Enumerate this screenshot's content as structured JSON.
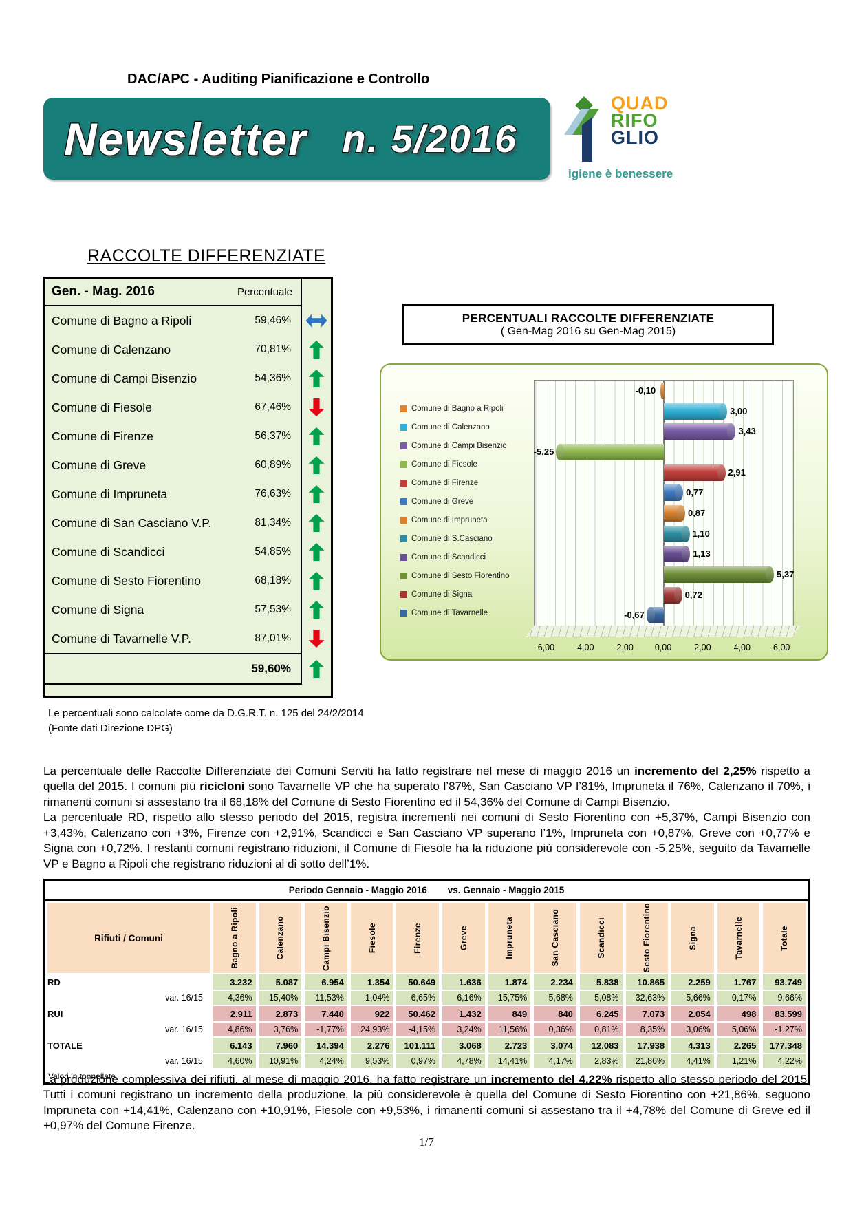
{
  "header": {
    "dept_title": "DAC/APC - Auditing Pianificazione e Controllo",
    "newsletter_label": "Newsletter",
    "issue_label": "n. 5/2016",
    "banner_color": "#177e79",
    "logo": {
      "line1": "QUAD",
      "line2": "RIFO",
      "line3": "GLIO",
      "colors": {
        "line1": "#f6a01a",
        "line2": "#4ca22f",
        "line3": "#1b3a63"
      },
      "tagline": "igiene è benessere"
    }
  },
  "rd_section": {
    "title": "RACCOLTE DIFFERENZIATE",
    "period_label": "Gen. - Mag.  2016",
    "col_label": "Percentuale",
    "rows": [
      {
        "name": "Comune di Bagno a Ripoli",
        "pct": "59,46%",
        "trend": "same"
      },
      {
        "name": "Comune di Calenzano",
        "pct": "70,81%",
        "trend": "up"
      },
      {
        "name": "Comune di Campi Bisenzio",
        "pct": "54,36%",
        "trend": "up"
      },
      {
        "name": "Comune di Fiesole",
        "pct": "67,46%",
        "trend": "down"
      },
      {
        "name": "Comune di Firenze",
        "pct": "56,37%",
        "trend": "up"
      },
      {
        "name": "Comune di Greve",
        "pct": "60,89%",
        "trend": "up"
      },
      {
        "name": "Comune di Impruneta",
        "pct": "76,63%",
        "trend": "up"
      },
      {
        "name": "Comune di San Casciano V.P.",
        "pct": "81,34%",
        "trend": "up"
      },
      {
        "name": "Comune di Scandicci",
        "pct": "54,85%",
        "trend": "up"
      },
      {
        "name": "Comune di Sesto Fiorentino",
        "pct": "68,18%",
        "trend": "up"
      },
      {
        "name": "Comune di Signa",
        "pct": "57,53%",
        "trend": "up"
      },
      {
        "name": "Comune di Tavarnelle V.P.",
        "pct": "87,01%",
        "trend": "down"
      }
    ],
    "total": {
      "pct": "59,60%",
      "trend": "up"
    },
    "footnote1": "Le percentuali sono calcolate come da D.G.R.T. n. 125 del 24/2/2014",
    "footnote2": "(Fonte dati Direzione DPG)"
  },
  "chart_data": {
    "type": "bar",
    "orientation": "horizontal",
    "title": "PERCENTUALI RACCOLTE DIFFERENZIATE",
    "subtitle": "( Gen-Mag 2016 su Gen-Mag 2015)",
    "xlim": [
      -6.55,
      6.55
    ],
    "xticks": [
      -6,
      -4,
      -2,
      0,
      2,
      4,
      6
    ],
    "xtick_labels": [
      "-6,00",
      "-4,00",
      "-2,00",
      "0,00",
      "2,00",
      "4,00",
      "6,00"
    ],
    "grid": true,
    "legend_position": "left",
    "series": [
      {
        "name": "Comune di Bagno a Ripoli",
        "value": -0.1,
        "label": "-0,10",
        "color": "#e0862c"
      },
      {
        "name": "Comune di Calenzano",
        "value": 3.0,
        "label": "3,00",
        "color": "#31b0d5"
      },
      {
        "name": "Comune di Campi Bisenzio",
        "value": 3.43,
        "label": "3,43",
        "color": "#7a5ea6"
      },
      {
        "name": "Comune di Fiesole",
        "value": -5.25,
        "label": "-5,25",
        "color": "#8fb84e"
      },
      {
        "name": "Comune di Firenze",
        "value": 2.91,
        "label": "2,91",
        "color": "#c2403c"
      },
      {
        "name": "Comune di Greve",
        "value": 0.77,
        "label": "0,77",
        "color": "#3f7bbf"
      },
      {
        "name": "Comune di Impruneta",
        "value": 0.87,
        "label": "0,87",
        "color": "#d9822b"
      },
      {
        "name": "Comune di S.Casciano",
        "value": 1.1,
        "label": "1,10",
        "color": "#2e8fa3"
      },
      {
        "name": "Comune di Scandicci",
        "value": 1.13,
        "label": "1,13",
        "color": "#6a4f93"
      },
      {
        "name": "Comune di Sesto Fiorentino",
        "value": 5.37,
        "label": "5,37",
        "color": "#6f9138"
      },
      {
        "name": "Comune di Signa",
        "value": 0.72,
        "label": "0,72",
        "color": "#a33835"
      },
      {
        "name": "Comune di Tavarnelle",
        "value": -0.67,
        "label": "-0,67",
        "color": "#39679e"
      }
    ]
  },
  "paragraphs": {
    "p1": [
      {
        "t": "La percentuale delle Raccolte Differenziate dei Comuni Serviti ha fatto registrare nel mese di maggio 2016 un "
      },
      {
        "t": "incremento del 2,25%",
        "b": true
      },
      {
        "t": " rispetto a quella del 2015. I comuni più "
      },
      {
        "t": "ricicloni",
        "b": true
      },
      {
        "t": " sono Tavarnelle VP che ha superato l’87%, San Casciano VP  l’81%, Impruneta il 76%, Calenzano il 70%, i rimanenti comuni si assestano tra il 68,18% del Comune di Sesto Fiorentino ed il 54,36% del Comune di Campi Bisenzio.\nLa percentuale RD, rispetto allo stesso periodo del 2015, registra incrementi nei comuni di Sesto Fiorentino con +5,37%, Campi Bisenzio con +3,43%, Calenzano con +3%, Firenze con +2,91%, Scandicci e San Casciano VP superano l’1%, Impruneta con +0,87%, Greve con +0,77% e Signa con +0,72%. I restanti comuni registrano riduzioni, il Comune di Fiesole ha la riduzione più considerevole con -5,25%, seguito da Tavarnelle VP e Bagno a Ripoli che registrano riduzioni al di sotto dell’1%."
      }
    ],
    "p2": [
      {
        "t": "La produzione complessiva dei rifiuti, al mese di maggio 2016, ha fatto registrare un "
      },
      {
        "t": "incremento del 4,22%",
        "b": true
      },
      {
        "t": " rispetto allo stesso periodo del 2015. Tutti i comuni registrano un incremento della produzione, la più considerevole è quella del Comune di Sesto Fiorentino con +21,86%, seguono Impruneta con +14,41%, Calenzano con +10,91%, Fiesole con +9,53%,  i rimanenti comuni si assestano tra il +4,78% del Comune di Greve ed il +0,97% del Comune Firenze."
      }
    ]
  },
  "waste_table": {
    "title_left": "Periodo Gennaio - Maggio  2016",
    "title_right": "vs. Gennaio - Maggio  2015",
    "corner_label": "Rifiuti / Comuni",
    "columns": [
      "Bagno a Ripoli",
      "Calenzano",
      "Campi Bisenzio",
      "Fiesole",
      "Firenze",
      "Greve",
      "Impruneta",
      "San Casciano",
      "Scandicci",
      "Sesto Fiorentino",
      "Signa",
      "Tavarnelle",
      "Totale"
    ],
    "rows": [
      {
        "label": "RD",
        "style": "main",
        "color": "green",
        "values": [
          "3.232",
          "5.087",
          "6.954",
          "1.354",
          "50.649",
          "1.636",
          "1.874",
          "2.234",
          "5.838",
          "10.865",
          "2.259",
          "1.767",
          "93.749"
        ]
      },
      {
        "label": "var. 16/15",
        "style": "var",
        "color": "green",
        "values": [
          "4,36%",
          "15,40%",
          "11,53%",
          "1,04%",
          "6,65%",
          "6,16%",
          "15,75%",
          "5,68%",
          "5,08%",
          "32,63%",
          "5,66%",
          "0,17%",
          "9,66%"
        ]
      },
      {
        "label": "RUI",
        "style": "main",
        "color": "pink",
        "values": [
          "2.911",
          "2.873",
          "7.440",
          "922",
          "50.462",
          "1.432",
          "849",
          "840",
          "6.245",
          "7.073",
          "2.054",
          "498",
          "83.599"
        ]
      },
      {
        "label": "var. 16/15",
        "style": "var",
        "color": "pink",
        "values": [
          "4,86%",
          "3,76%",
          "-1,77%",
          "24,93%",
          "-4,15%",
          "3,24%",
          "11,56%",
          "0,36%",
          "0,81%",
          "8,35%",
          "3,06%",
          "5,06%",
          "-1,27%"
        ]
      },
      {
        "label": "TOTALE",
        "style": "main",
        "color": "green",
        "values": [
          "6.143",
          "7.960",
          "14.394",
          "2.276",
          "101.111",
          "3.068",
          "2.723",
          "3.074",
          "12.083",
          "17.938",
          "4.313",
          "2.265",
          "177.348"
        ]
      },
      {
        "label": "var. 16/15",
        "style": "var",
        "color": "green",
        "values": [
          "4,60%",
          "10,91%",
          "4,24%",
          "9,53%",
          "0,97%",
          "4,78%",
          "14,41%",
          "4,17%",
          "2,83%",
          "21,86%",
          "4,41%",
          "1,21%",
          "4,22%"
        ]
      }
    ],
    "footer": "Valori in tonnellate"
  },
  "page_number": "1/7"
}
